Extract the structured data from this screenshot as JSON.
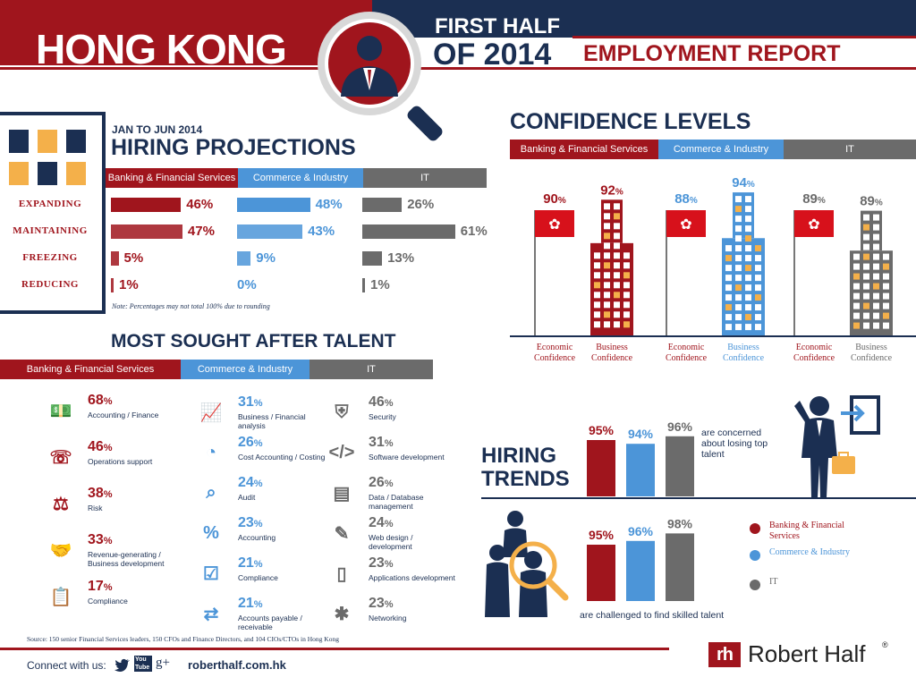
{
  "header": {
    "city": "HONG KONG",
    "period": "FIRST HALF",
    "year": "OF 2014",
    "report": "EMPLOYMENT REPORT"
  },
  "colors": {
    "banking": "#a0151d",
    "commerce": "#4c95d8",
    "it": "#6b6b6b",
    "navy": "#1b2f52"
  },
  "hiring_projections": {
    "period_label": "JAN TO JUN 2014",
    "title": "HIRING PROJECTIONS",
    "columns": [
      "Banking & Financial Services",
      "Commerce & Industry",
      "IT"
    ],
    "rows": [
      {
        "label": "EXPANDING",
        "values": [
          "46%",
          "48%",
          "26%"
        ]
      },
      {
        "label": "MAINTAINING",
        "values": [
          "47%",
          "43%",
          "61%"
        ]
      },
      {
        "label": "FREEZING",
        "values": [
          "5%",
          "9%",
          "13%"
        ]
      },
      {
        "label": "REDUCING",
        "values": [
          "1%",
          "0%",
          "1%"
        ]
      }
    ],
    "note": "Note: Percentages may not total 100% due to rounding"
  },
  "confidence": {
    "title": "CONFIDENCE LEVELS",
    "tabs": [
      "Banking & Financial Services",
      "Commerce & Industry",
      "IT"
    ],
    "items": [
      {
        "value": "90",
        "unit": "%",
        "caption": [
          "Economic",
          "Confidence"
        ]
      },
      {
        "value": "92",
        "unit": "%",
        "caption": [
          "Business",
          "Confidence"
        ]
      },
      {
        "value": "88",
        "unit": "%",
        "caption": [
          "Economic",
          "Confidence"
        ]
      },
      {
        "value": "94",
        "unit": "%",
        "caption": [
          "Business",
          "Confidence"
        ]
      },
      {
        "value": "89",
        "unit": "%",
        "caption": [
          "Economic",
          "Confidence"
        ]
      },
      {
        "value": "89",
        "unit": "%",
        "caption": [
          "Business",
          "Confidence"
        ]
      }
    ]
  },
  "talent": {
    "title": "MOST SOUGHT AFTER TALENT",
    "tabs": [
      "Banking & Financial Services",
      "Commerce & Industry",
      "IT"
    ],
    "banking": [
      {
        "pct": "68",
        "label": "Accounting / Finance",
        "icon": "money-icon"
      },
      {
        "pct": "46",
        "label": "Operations support",
        "icon": "phone-globe-icon"
      },
      {
        "pct": "38",
        "label": "Risk",
        "icon": "scales-person-icon"
      },
      {
        "pct": "33",
        "label": "Revenue-generating / Business development",
        "icon": "handshake-icon"
      },
      {
        "pct": "17",
        "label": "Compliance",
        "icon": "clipboard-icon"
      }
    ],
    "commerce": [
      {
        "pct": "31",
        "label": "Business / Financial analysis",
        "icon": "chart-board-icon"
      },
      {
        "pct": "26",
        "label": "Cost Accounting / Costing",
        "icon": "pie-chart-icon"
      },
      {
        "pct": "24",
        "label": "Audit",
        "icon": "magnifier-icon"
      },
      {
        "pct": "23",
        "label": "Accounting",
        "icon": "calculator-icon"
      },
      {
        "pct": "21",
        "label": "Compliance",
        "icon": "checklist-icon"
      },
      {
        "pct": "21",
        "label": "Accounts payable / receivable",
        "icon": "cash-arrows-icon"
      }
    ],
    "it": [
      {
        "pct": "46",
        "label": "Security",
        "icon": "shield-icon"
      },
      {
        "pct": "31",
        "label": "Software development",
        "icon": "laptop-code-icon"
      },
      {
        "pct": "26",
        "label": "Data / Database management",
        "icon": "folder-icon"
      },
      {
        "pct": "24",
        "label": "Web design / development",
        "icon": "laptop-pen-icon"
      },
      {
        "pct": "23",
        "label": "Applications development",
        "icon": "smartphone-icon"
      },
      {
        "pct": "23",
        "label": "Networking",
        "icon": "network-icon"
      }
    ]
  },
  "hiring_trends": {
    "title_line1": "HIRING",
    "title_line2": "TRENDS",
    "top": {
      "values": [
        "95%",
        "94%",
        "96%"
      ],
      "caption": "are concerned about losing top talent"
    },
    "bottom": {
      "values": [
        "95%",
        "96%",
        "98%"
      ],
      "caption": "are challenged to find skilled talent"
    },
    "legend": [
      "Banking & Financial Services",
      "Commerce & Industry",
      "IT"
    ]
  },
  "footer": {
    "source": "Source: 150 senior Financial Services leaders, 150 CFOs and Finance Directors, and 104 CIOs/CTOs in Hong Kong",
    "connect": "Connect with us:",
    "website": "roberthalf.com.hk",
    "brand": "Robert Half",
    "logo_text": "rh",
    "social": [
      "twitter-icon",
      "youtube-icon",
      "google-plus-icon"
    ],
    "youtube_text": "You Tube",
    "gplus_text": "g+"
  },
  "chart_data": [
    {
      "type": "bar",
      "title": "HIRING PROJECTIONS",
      "categories": [
        "EXPANDING",
        "MAINTAINING",
        "FREEZING",
        "REDUCING"
      ],
      "series": [
        {
          "name": "Banking & Financial Services",
          "values": [
            46,
            47,
            5,
            1
          ]
        },
        {
          "name": "Commerce & Industry",
          "values": [
            48,
            43,
            9,
            0
          ]
        },
        {
          "name": "IT",
          "values": [
            26,
            61,
            13,
            1
          ]
        }
      ]
    },
    {
      "type": "bar",
      "title": "CONFIDENCE LEVELS",
      "categories": [
        "Economic Confidence",
        "Business Confidence"
      ],
      "series": [
        {
          "name": "Banking & Financial Services",
          "values": [
            90,
            92
          ]
        },
        {
          "name": "Commerce & Industry",
          "values": [
            88,
            94
          ]
        },
        {
          "name": "IT",
          "values": [
            89,
            89
          ]
        }
      ]
    },
    {
      "type": "bar",
      "title": "HIRING TRENDS",
      "categories": [
        "are concerned about losing top talent",
        "are challenged to find skilled talent"
      ],
      "series": [
        {
          "name": "Banking & Financial Services",
          "values": [
            95,
            95
          ]
        },
        {
          "name": "Commerce & Industry",
          "values": [
            94,
            96
          ]
        },
        {
          "name": "IT",
          "values": [
            96,
            98
          ]
        }
      ]
    }
  ]
}
